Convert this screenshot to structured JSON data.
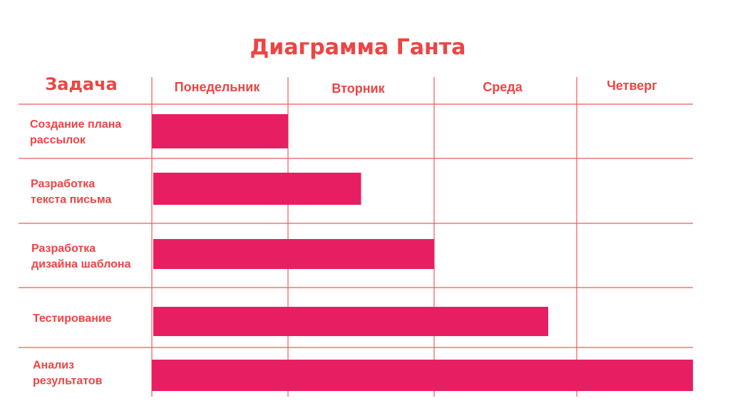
{
  "colors": {
    "accent": "#ee4444",
    "bar": "#e81e63",
    "grid": "#ef5b58",
    "background": "#ffffff"
  },
  "chart_data": {
    "type": "bar",
    "title": "Диаграмма Ганта",
    "task_header": "Задача",
    "categories": [
      "Понедельник",
      "Вторник",
      "Среда",
      "Четверг"
    ],
    "tasks": [
      {
        "label_lines": [
          "Создание плана",
          "рассылок"
        ],
        "start": 0,
        "end": 1.0
      },
      {
        "label_lines": [
          "Разработка",
          "текста письма"
        ],
        "start": 0,
        "end": 1.5
      },
      {
        "label_lines": [
          "Разработка",
          "дизайна шаблона"
        ],
        "start": 0,
        "end": 2.0
      },
      {
        "label_lines": [
          "Тестирование"
        ],
        "start": 0,
        "end": 2.8
      },
      {
        "label_lines": [
          "Анализ",
          "результатов"
        ],
        "start": 0,
        "end": 4.0
      }
    ],
    "xlim": [
      0,
      4
    ]
  }
}
